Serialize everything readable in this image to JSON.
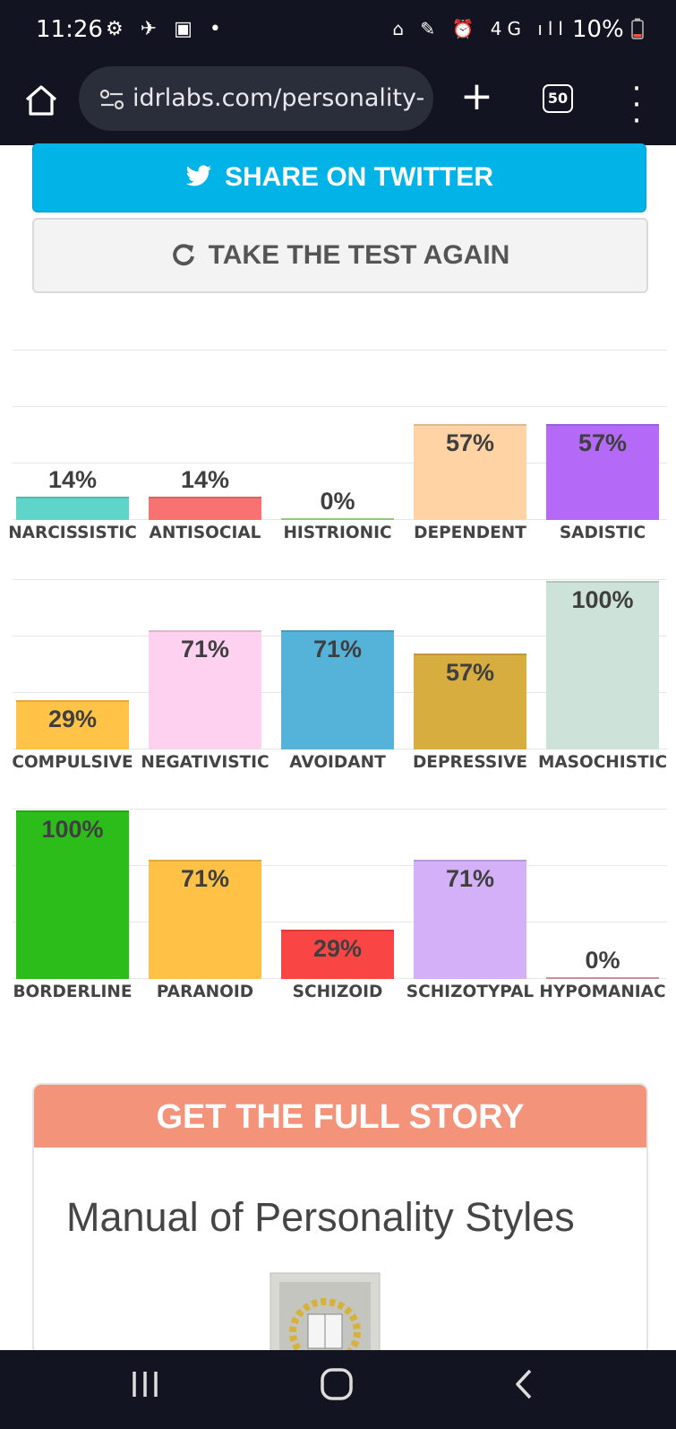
{
  "status_bar": {
    "time": "11:26",
    "left_icons": "⚙ ✈ ▣ •",
    "right_icons": "⌂ ✎ ⏰ 4G ıll",
    "battery": "10%"
  },
  "browser": {
    "url": "idrlabs.com/personality-",
    "tab_count": "50"
  },
  "buttons": {
    "twitter_label": "SHARE ON TWITTER",
    "retake_label": "TAKE THE TEST AGAIN"
  },
  "chart_data": [
    {
      "type": "bar",
      "categories": [
        "NARCISSISTIC",
        "ANTISOCIAL",
        "HISTRIONIC",
        "DEPENDENT",
        "SADISTIC"
      ],
      "values": [
        14,
        14,
        0,
        57,
        57
      ],
      "value_labels": [
        "14%",
        "14%",
        "0%",
        "57%",
        "57%"
      ],
      "colors": [
        "#5fd4c8",
        "#f97272",
        "#a7e38f",
        "#ffd3a3",
        "#b46af6"
      ],
      "ylim": [
        0,
        100
      ]
    },
    {
      "type": "bar",
      "categories": [
        "COMPULSIVE",
        "NEGATIVISTIC",
        "AVOIDANT",
        "DEPRESSIVE",
        "MASOCHISTIC"
      ],
      "values": [
        29,
        71,
        71,
        57,
        100
      ],
      "value_labels": [
        "29%",
        "71%",
        "71%",
        "57%",
        "100%"
      ],
      "colors": [
        "#ffc447",
        "#ffd1f1",
        "#55b2d9",
        "#d6ad3e",
        "#cde3d9"
      ],
      "ylim": [
        0,
        100
      ]
    },
    {
      "type": "bar",
      "categories": [
        "BORDERLINE",
        "PARANOID",
        "SCHIZOID",
        "SCHIZOTYPAL",
        "HYPOMANIAC"
      ],
      "values": [
        100,
        71,
        29,
        71,
        0
      ],
      "value_labels": [
        "100%",
        "71%",
        "29%",
        "71%",
        "0%"
      ],
      "colors": [
        "#2dbd1b",
        "#ffc247",
        "#fa4545",
        "#d3b0f7",
        "#f0a0a8"
      ],
      "ylim": [
        0,
        100
      ]
    }
  ],
  "story": {
    "header": "GET THE FULL STORY",
    "title": "Manual of Personality Styles"
  }
}
